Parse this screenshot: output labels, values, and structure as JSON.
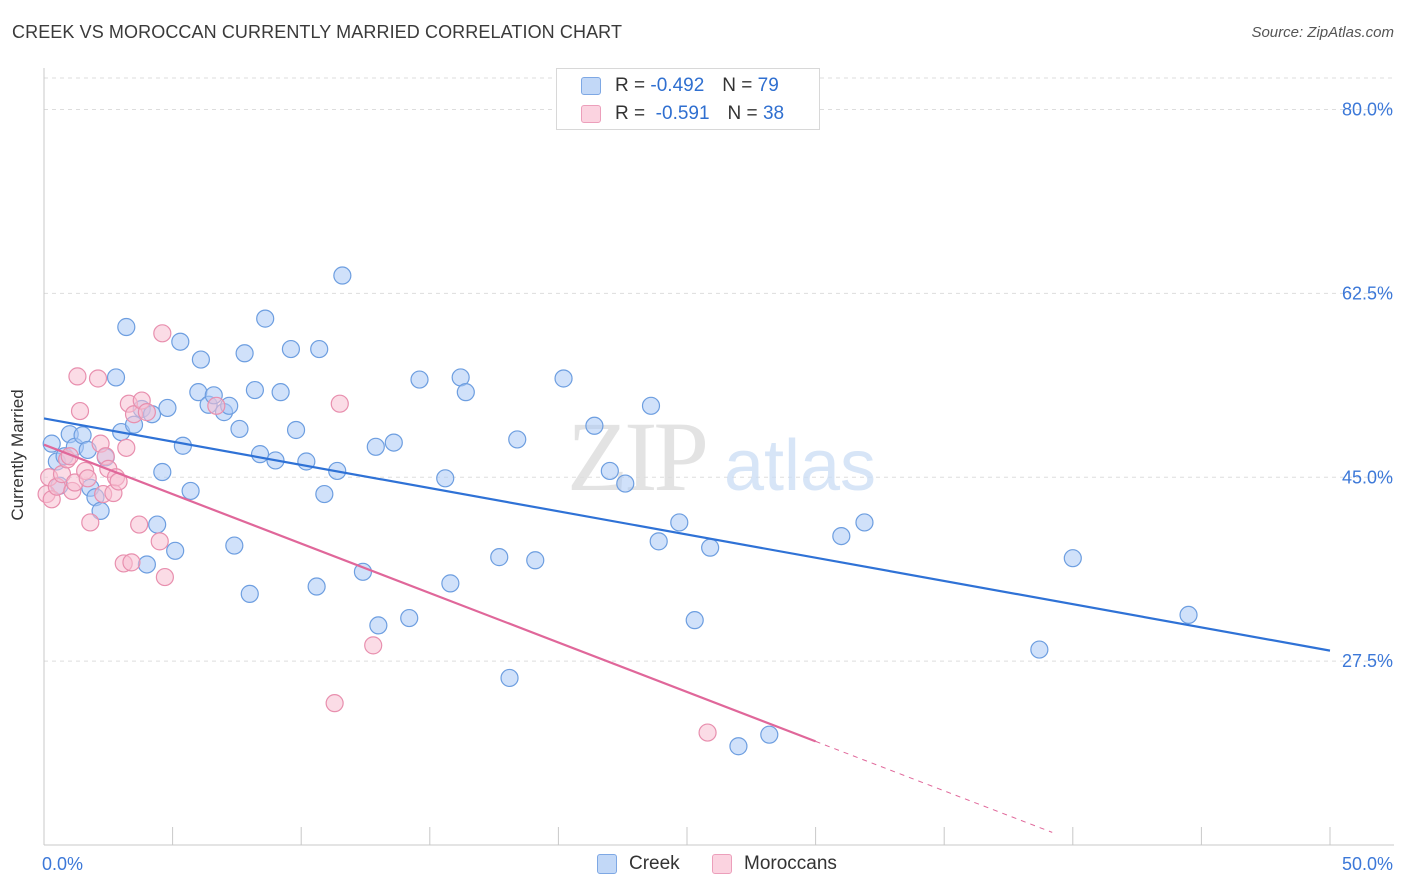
{
  "title": "CREEK VS MOROCCAN CURRENTLY MARRIED CORRELATION CHART",
  "source": "Source: ZipAtlas.com",
  "watermark": {
    "zip": "ZIP",
    "atlas": "atlas"
  },
  "legend_top": [
    {
      "r_label": "R =",
      "r_value": "-0.492",
      "n_label": "N =",
      "n_value": "79"
    },
    {
      "r_label": "R =",
      "r_value": "-0.591",
      "n_label": "N =",
      "n_value": "38"
    }
  ],
  "legend_bottom": [
    {
      "label": "Creek"
    },
    {
      "label": "Moroccans"
    }
  ],
  "colors": {
    "creek_fill": "#a9c8f5",
    "creek_stroke": "#6d9ee0",
    "creek_line": "#2f72d6",
    "moroccan_fill": "#f8c0d2",
    "moroccan_stroke": "#e88fae",
    "moroccan_line": "#e0679a",
    "axis_text": "#3c78d8",
    "grid": "#dddddd"
  },
  "chart_data": {
    "type": "scatter",
    "title": "CREEK VS MOROCCAN CURRENTLY MARRIED CORRELATION CHART",
    "xlabel": "",
    "ylabel": "Currently Married",
    "xlim": [
      0,
      50
    ],
    "ylim": [
      10,
      83
    ],
    "x_tick_labels": [
      {
        "value": 0,
        "label": "0.0%"
      },
      {
        "value": 50,
        "label": "50.0%"
      }
    ],
    "y_tick_labels": [
      {
        "value": 80,
        "label": "80.0%"
      },
      {
        "value": 62.5,
        "label": "62.5%"
      },
      {
        "value": 45,
        "label": "45.0%"
      },
      {
        "value": 27.5,
        "label": "27.5%"
      }
    ],
    "series": [
      {
        "name": "Creek",
        "trend": {
          "x0": 0,
          "y0": 50.6,
          "x1": 50,
          "y1": 28.5,
          "dash_from": 50
        },
        "points": [
          [
            0.3,
            48.2
          ],
          [
            0.5,
            46.5
          ],
          [
            0.6,
            44.2
          ],
          [
            0.8,
            47.0
          ],
          [
            1.0,
            49.1
          ],
          [
            1.2,
            47.9
          ],
          [
            1.5,
            49.0
          ],
          [
            1.7,
            47.6
          ],
          [
            1.8,
            44.0
          ],
          [
            2.0,
            43.1
          ],
          [
            2.2,
            41.8
          ],
          [
            2.4,
            46.9
          ],
          [
            2.8,
            54.5
          ],
          [
            3.0,
            49.3
          ],
          [
            3.2,
            59.3
          ],
          [
            3.5,
            50.0
          ],
          [
            3.8,
            51.5
          ],
          [
            4.0,
            36.7
          ],
          [
            4.2,
            51.0
          ],
          [
            4.4,
            40.5
          ],
          [
            4.6,
            45.5
          ],
          [
            4.8,
            51.6
          ],
          [
            5.1,
            38.0
          ],
          [
            5.3,
            57.9
          ],
          [
            5.4,
            48.0
          ],
          [
            5.7,
            43.7
          ],
          [
            6.0,
            53.1
          ],
          [
            6.1,
            56.2
          ],
          [
            6.4,
            51.9
          ],
          [
            6.6,
            52.8
          ],
          [
            7.0,
            51.2
          ],
          [
            7.2,
            51.8
          ],
          [
            7.4,
            38.5
          ],
          [
            7.6,
            49.6
          ],
          [
            7.8,
            56.8
          ],
          [
            8.0,
            33.9
          ],
          [
            8.2,
            53.3
          ],
          [
            8.4,
            47.2
          ],
          [
            8.6,
            60.1
          ],
          [
            9.0,
            46.6
          ],
          [
            9.2,
            53.1
          ],
          [
            9.6,
            57.2
          ],
          [
            9.8,
            49.5
          ],
          [
            10.2,
            46.5
          ],
          [
            10.6,
            34.6
          ],
          [
            10.7,
            57.2
          ],
          [
            10.9,
            43.4
          ],
          [
            11.4,
            45.6
          ],
          [
            11.6,
            64.2
          ],
          [
            12.4,
            36.0
          ],
          [
            12.9,
            47.9
          ],
          [
            13.0,
            30.9
          ],
          [
            13.6,
            48.3
          ],
          [
            14.2,
            31.6
          ],
          [
            14.6,
            54.3
          ],
          [
            15.6,
            44.9
          ],
          [
            15.8,
            34.9
          ],
          [
            16.2,
            54.5
          ],
          [
            16.4,
            53.1
          ],
          [
            17.7,
            37.4
          ],
          [
            18.1,
            25.9
          ],
          [
            18.4,
            48.6
          ],
          [
            19.1,
            37.1
          ],
          [
            20.2,
            54.4
          ],
          [
            21.4,
            49.9
          ],
          [
            22.0,
            45.6
          ],
          [
            22.6,
            44.4
          ],
          [
            23.6,
            51.8
          ],
          [
            23.9,
            38.9
          ],
          [
            24.7,
            40.7
          ],
          [
            25.3,
            31.4
          ],
          [
            25.9,
            38.3
          ],
          [
            27.0,
            19.4
          ],
          [
            28.2,
            20.5
          ],
          [
            31.0,
            39.4
          ],
          [
            31.9,
            40.7
          ],
          [
            38.7,
            28.6
          ],
          [
            40.0,
            37.3
          ],
          [
            44.5,
            31.9
          ]
        ]
      },
      {
        "name": "Moroccans",
        "trend": {
          "x0": 0,
          "y0": 48.1,
          "x1": 39.2,
          "y1": 11.2,
          "dash_from": 30.0
        },
        "points": [
          [
            0.1,
            43.4
          ],
          [
            0.2,
            45.0
          ],
          [
            0.3,
            42.9
          ],
          [
            0.5,
            44.1
          ],
          [
            0.7,
            45.3
          ],
          [
            0.9,
            46.7
          ],
          [
            1.0,
            47.0
          ],
          [
            1.1,
            43.7
          ],
          [
            1.2,
            44.5
          ],
          [
            1.3,
            54.6
          ],
          [
            1.4,
            51.3
          ],
          [
            1.6,
            45.6
          ],
          [
            1.7,
            44.9
          ],
          [
            1.8,
            40.7
          ],
          [
            2.1,
            54.4
          ],
          [
            2.2,
            48.2
          ],
          [
            2.3,
            43.4
          ],
          [
            2.4,
            47.0
          ],
          [
            2.5,
            45.8
          ],
          [
            2.7,
            43.5
          ],
          [
            2.8,
            45.0
          ],
          [
            2.9,
            44.6
          ],
          [
            3.1,
            36.8
          ],
          [
            3.2,
            47.8
          ],
          [
            3.3,
            52.0
          ],
          [
            3.4,
            36.9
          ],
          [
            3.5,
            51.0
          ],
          [
            3.7,
            40.5
          ],
          [
            3.8,
            52.3
          ],
          [
            4.0,
            51.2
          ],
          [
            4.5,
            38.9
          ],
          [
            4.6,
            58.7
          ],
          [
            4.7,
            35.5
          ],
          [
            6.7,
            51.8
          ],
          [
            11.3,
            23.5
          ],
          [
            11.5,
            52.0
          ],
          [
            12.8,
            29.0
          ],
          [
            25.8,
            20.7
          ]
        ]
      }
    ]
  }
}
